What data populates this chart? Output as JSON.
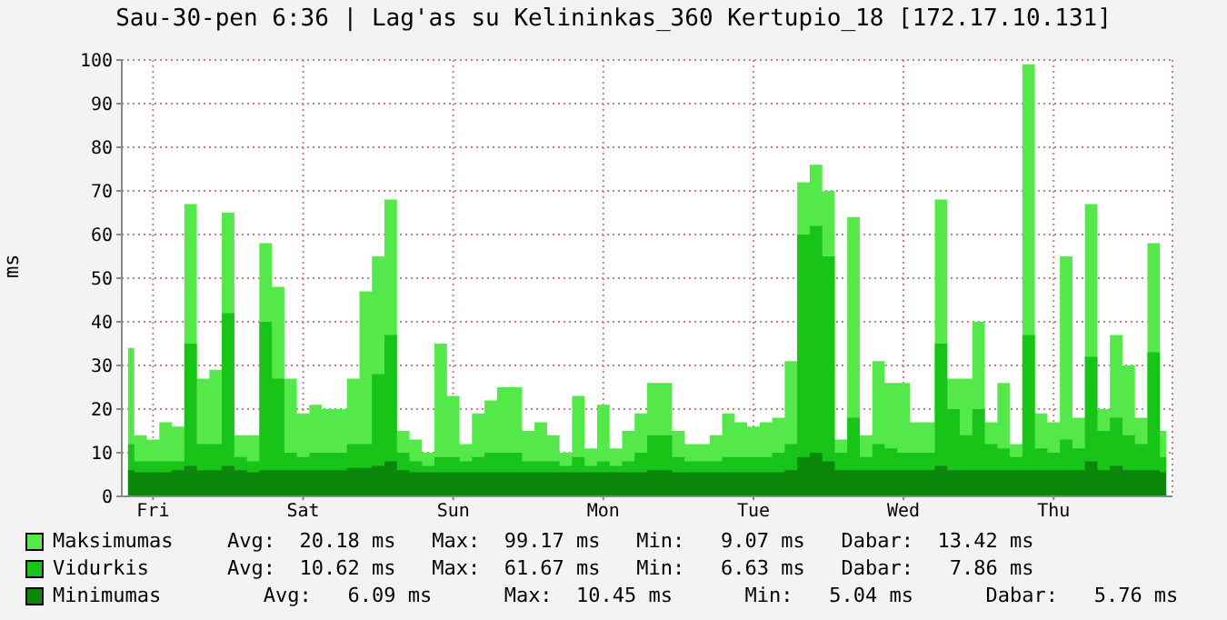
{
  "chart_data": {
    "type": "area",
    "title": "Sau-30-pen 6:36 | Lag'as su Kelininkas_360 Kertupio_18 [172.17.10.131]",
    "ylabel": "ms",
    "categories": [
      null,
      null,
      "Fri",
      null,
      null,
      null,
      null,
      null,
      null,
      null,
      null,
      null,
      null,
      null,
      "Sat",
      null,
      null,
      null,
      null,
      null,
      null,
      null,
      null,
      null,
      null,
      null,
      "Sun",
      null,
      null,
      null,
      null,
      null,
      null,
      null,
      null,
      null,
      null,
      null,
      "Mon",
      null,
      null,
      null,
      null,
      null,
      null,
      null,
      null,
      null,
      null,
      null,
      "Tue",
      null,
      null,
      null,
      null,
      null,
      null,
      null,
      null,
      null,
      null,
      null,
      "Wed",
      null,
      null,
      null,
      null,
      null,
      null,
      null,
      null,
      null,
      null,
      null,
      "Thu",
      null,
      null,
      null,
      null,
      null,
      null,
      null,
      null,
      null
    ],
    "series": [
      {
        "name": "Maksimumas",
        "color": "#55e84a",
        "values": [
          34,
          14,
          13,
          17,
          16,
          67,
          27,
          29,
          65,
          14,
          14,
          58,
          48,
          27,
          19,
          21,
          20,
          20,
          27,
          47,
          55,
          68,
          15,
          13,
          10,
          35,
          23,
          12,
          19,
          22,
          25,
          25,
          15,
          17,
          14,
          10,
          23,
          11,
          21,
          11,
          15,
          19,
          26,
          26,
          15,
          12,
          12,
          14,
          19,
          17,
          16,
          17,
          18,
          31,
          72,
          76,
          70,
          13,
          64,
          14,
          31,
          26,
          26,
          17,
          17,
          68,
          27,
          27,
          40,
          17,
          26,
          12,
          99,
          19,
          17,
          55,
          18,
          67,
          20,
          37,
          30,
          18,
          58,
          15
        ]
      },
      {
        "name": "Vidurkis",
        "color": "#17c417",
        "values": [
          12,
          8,
          8,
          8,
          8,
          35,
          12,
          12,
          42,
          9,
          8,
          40,
          27,
          10,
          9,
          10,
          10,
          10,
          12,
          12,
          28,
          37,
          10,
          8,
          7,
          9,
          9,
          8,
          9,
          10,
          10,
          10,
          8,
          8,
          8,
          7,
          9,
          7,
          8,
          7,
          8,
          10,
          14,
          14,
          9,
          8,
          8,
          8,
          9,
          9,
          9,
          9,
          10,
          12,
          60,
          62,
          55,
          10,
          18,
          9,
          12,
          11,
          10,
          10,
          10,
          35,
          20,
          14,
          20,
          12,
          11,
          9,
          37,
          11,
          10,
          13,
          11,
          32,
          15,
          18,
          14,
          12,
          33,
          9
        ]
      },
      {
        "name": "Minimumas",
        "color": "#0b870b",
        "values": [
          6,
          5.5,
          5.5,
          5.5,
          6,
          7,
          6,
          6,
          7,
          6,
          5.5,
          6,
          6,
          6,
          6,
          6,
          6,
          6,
          6.5,
          6.5,
          7,
          8,
          6,
          5.5,
          5.5,
          5.5,
          5.5,
          5.5,
          5.5,
          5.5,
          5.5,
          5.5,
          5.5,
          5.5,
          5.5,
          5.5,
          5.5,
          5.5,
          5.5,
          5.5,
          5.5,
          5.5,
          6,
          6,
          5.5,
          5.5,
          5.5,
          5.5,
          5.5,
          5.5,
          5.5,
          5.5,
          5.5,
          6,
          9,
          10,
          8,
          6,
          6,
          6,
          6,
          6,
          6,
          6,
          6,
          7,
          6,
          6,
          6,
          6,
          6,
          6,
          6,
          6,
          6,
          6,
          6,
          8,
          6,
          7,
          6,
          6,
          6,
          5.5
        ]
      }
    ],
    "ylim": [
      0,
      100
    ],
    "yticks": [
      0,
      10,
      20,
      30,
      40,
      50,
      60,
      70,
      80,
      90,
      100
    ],
    "grid": true,
    "legend": "bottom",
    "annotations": [
      "Avg:  20.18 ms   Max:  99.17 ms   Min:   9.07 ms   Dabar:  13.42 ms",
      "Avg:  10.62 ms   Max:  61.67 ms   Min:   6.63 ms   Dabar:   7.86 ms",
      "   Avg:   6.09 ms      Max:  10.45 ms      Min:   5.04 ms      Dabar:   5.76 ms"
    ]
  }
}
